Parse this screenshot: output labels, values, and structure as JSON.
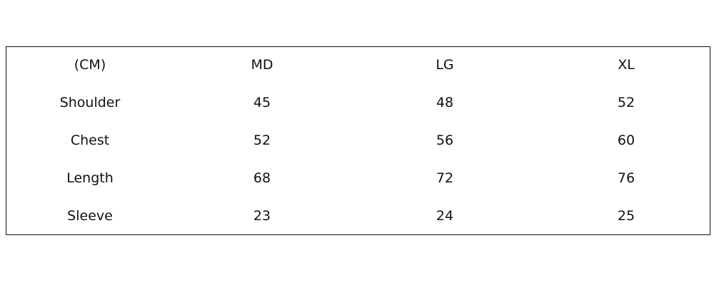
{
  "table": {
    "header": [
      "(CM)",
      "MD",
      "LG",
      "XL"
    ],
    "rows": [
      [
        "Shoulder",
        45,
        48,
        52
      ],
      [
        "Chest",
        52,
        56,
        60
      ],
      [
        "Length",
        68,
        72,
        76
      ],
      [
        "Sleeve",
        23,
        24,
        25
      ]
    ]
  }
}
